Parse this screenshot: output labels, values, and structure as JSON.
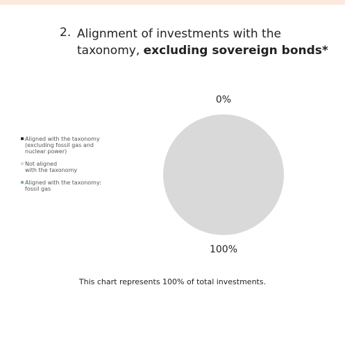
{
  "chart_data": {
    "type": "pie",
    "number": "2.",
    "title": "Alignment of investments with the taxonomy,",
    "title_bold": "excluding sovereign bonds*",
    "categories": [
      "Aligned with the taxonomy\n(excluding fossil gas and\nnuclear power)",
      "Not aligned\nwith the taxonomy",
      "Aligned with the taxonomy:\nfossil gas"
    ],
    "values": [
      0,
      100,
      0
    ],
    "value_labels": [
      "0%",
      "100%",
      null
    ],
    "colors": [
      "#1b3b24",
      "#d9d9d9",
      "#7dbb86"
    ],
    "note": "This chart represents 100% of total investments."
  }
}
